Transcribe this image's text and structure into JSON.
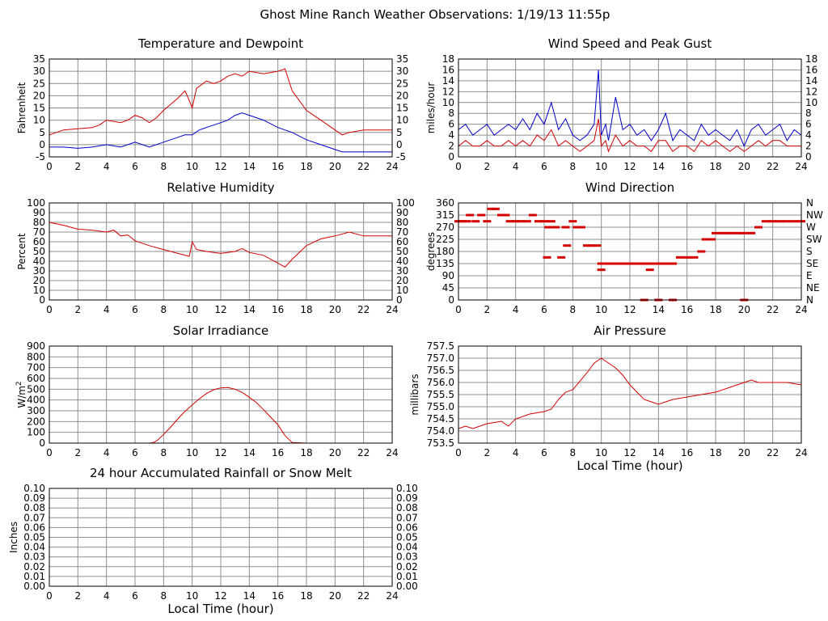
{
  "title": "Ghost Mine Ranch Weather Observations: 1/19/13 11:55p",
  "x_axis_label": "Local Time (hour)",
  "colors": {
    "red": "#d40000",
    "blue": "#0000cc",
    "grid": "#8f8f8f"
  },
  "chart_data": [
    {
      "id": "temperature",
      "type": "line",
      "title": "Temperature and Dewpoint",
      "ylabel": "Fahrenheit",
      "xlim": [
        0,
        24
      ],
      "ylim": [
        -5,
        35
      ],
      "x_ticks": [
        0,
        2,
        4,
        6,
        8,
        10,
        12,
        14,
        16,
        18,
        20,
        22,
        24
      ],
      "y_ticks": [
        -5,
        0,
        5,
        10,
        15,
        20,
        25,
        30,
        35
      ],
      "right_axis": true,
      "grid": true,
      "series": [
        {
          "color": "red",
          "x": [
            0,
            1,
            2,
            3,
            3.5,
            4,
            5,
            5.5,
            6,
            6.5,
            7,
            7.5,
            8,
            9,
            9.5,
            9.8,
            10,
            10.3,
            11,
            11.5,
            12,
            12.5,
            13,
            13.5,
            14,
            15,
            16,
            16.5,
            17,
            17.5,
            18,
            19,
            20,
            20.5,
            21,
            22,
            23,
            24
          ],
          "values": [
            4,
            6,
            6.5,
            7,
            8,
            10,
            9,
            10,
            12,
            11,
            9,
            11,
            14,
            19,
            22,
            18,
            15,
            23,
            26,
            25,
            26,
            28,
            29,
            28,
            30,
            29,
            30,
            31,
            22,
            18,
            14,
            10,
            6,
            4,
            5,
            6,
            6,
            6
          ]
        },
        {
          "color": "blue",
          "x": [
            0,
            1,
            2,
            3,
            4,
            5,
            6,
            7,
            8,
            9,
            9.5,
            10,
            10.5,
            11,
            11.5,
            12,
            12.5,
            13,
            13.5,
            14,
            15,
            16,
            17,
            18,
            19,
            20,
            20.5,
            21,
            22,
            23,
            24
          ],
          "values": [
            -1,
            -1,
            -1.5,
            -1,
            0,
            -1,
            1,
            -1,
            1,
            3,
            4,
            4,
            6,
            7,
            8,
            9,
            10,
            12,
            13,
            12,
            10,
            7,
            5,
            2,
            0,
            -2,
            -3,
            -3,
            -3,
            -3,
            -3
          ]
        }
      ]
    },
    {
      "id": "wind_speed",
      "type": "line",
      "title": "Wind Speed and Peak Gust",
      "ylabel": "miles/hour",
      "xlim": [
        0,
        24
      ],
      "ylim": [
        0,
        18
      ],
      "x_ticks": [
        0,
        2,
        4,
        6,
        8,
        10,
        12,
        14,
        16,
        18,
        20,
        22,
        24
      ],
      "y_ticks": [
        0,
        2,
        4,
        6,
        8,
        10,
        12,
        14,
        16,
        18
      ],
      "right_axis": true,
      "grid": true,
      "series": [
        {
          "color": "blue",
          "x": [
            0,
            0.5,
            1,
            1.5,
            2,
            2.5,
            3,
            3.5,
            4,
            4.5,
            5,
            5.5,
            6,
            6.5,
            7,
            7.5,
            8,
            8.5,
            9,
            9.5,
            9.8,
            10,
            10.3,
            10.5,
            11,
            11.5,
            12,
            12.5,
            13,
            13.5,
            14,
            14.5,
            15,
            15.5,
            16,
            16.5,
            17,
            17.5,
            18,
            18.5,
            19,
            19.5,
            20,
            20.5,
            21,
            21.5,
            22,
            22.5,
            23,
            23.5,
            24
          ],
          "values": [
            5,
            6,
            4,
            5,
            6,
            4,
            5,
            6,
            5,
            7,
            5,
            8,
            6,
            10,
            5,
            7,
            4,
            3,
            4,
            6,
            16,
            4,
            6,
            3,
            11,
            5,
            6,
            4,
            5,
            3,
            5,
            8,
            3,
            5,
            4,
            3,
            6,
            4,
            5,
            4,
            3,
            5,
            2,
            5,
            6,
            4,
            5,
            6,
            3,
            5,
            4
          ]
        },
        {
          "color": "red",
          "x": [
            0,
            0.5,
            1,
            1.5,
            2,
            2.5,
            3,
            3.5,
            4,
            4.5,
            5,
            5.5,
            6,
            6.5,
            7,
            7.5,
            8,
            8.5,
            9,
            9.5,
            9.8,
            10,
            10.3,
            10.5,
            11,
            11.5,
            12,
            12.5,
            13,
            13.5,
            14,
            14.5,
            15,
            15.5,
            16,
            16.5,
            17,
            17.5,
            18,
            18.5,
            19,
            19.5,
            20,
            20.5,
            21,
            21.5,
            22,
            22.5,
            23,
            23.5,
            24
          ],
          "values": [
            2,
            3,
            2,
            2,
            3,
            2,
            2,
            3,
            2,
            3,
            2,
            4,
            3,
            5,
            2,
            3,
            2,
            1,
            2,
            3,
            7,
            2,
            3,
            1,
            4,
            2,
            3,
            2,
            2,
            1,
            3,
            3,
            1,
            2,
            2,
            1,
            3,
            2,
            3,
            2,
            1,
            2,
            1,
            2,
            3,
            2,
            3,
            3,
            2,
            2,
            2
          ]
        }
      ]
    },
    {
      "id": "humidity",
      "type": "line",
      "title": "Relative Humidity",
      "ylabel": "Percent",
      "xlim": [
        0,
        24
      ],
      "ylim": [
        0,
        100
      ],
      "x_ticks": [
        0,
        2,
        4,
        6,
        8,
        10,
        12,
        14,
        16,
        18,
        20,
        22,
        24
      ],
      "y_ticks": [
        0,
        10,
        20,
        30,
        40,
        50,
        60,
        70,
        80,
        90,
        100
      ],
      "right_axis": true,
      "grid": true,
      "series": [
        {
          "color": "red",
          "x": [
            0,
            1,
            2,
            3,
            4,
            4.5,
            5,
            5.5,
            6,
            7,
            8,
            9,
            9.8,
            10,
            10.3,
            11,
            12,
            13,
            13.5,
            14,
            15,
            16,
            16.5,
            17,
            18,
            19,
            20,
            21,
            22,
            23,
            24
          ],
          "values": [
            80,
            77,
            73,
            72,
            70,
            72,
            66,
            67,
            61,
            56,
            52,
            48,
            45,
            60,
            52,
            50,
            48,
            50,
            53,
            49,
            46,
            38,
            34,
            42,
            56,
            63,
            66,
            70,
            66,
            66,
            66
          ]
        }
      ]
    },
    {
      "id": "wind_direction",
      "type": "scatter",
      "title": "Wind Direction",
      "ylabel": "degrees",
      "xlim": [
        0,
        24
      ],
      "ylim": [
        0,
        360
      ],
      "x_ticks": [
        0,
        2,
        4,
        6,
        8,
        10,
        12,
        14,
        16,
        18,
        20,
        22,
        24
      ],
      "y_ticks": [
        0,
        45,
        90,
        135,
        180,
        225,
        270,
        315,
        360
      ],
      "right_labels": [
        "N",
        "NE",
        "E",
        "SE",
        "S",
        "SW",
        "W",
        "NW",
        "N"
      ],
      "grid": true,
      "series": [
        {
          "color": "red",
          "x": [
            0,
            0.3,
            0.6,
            0.8,
            1.2,
            1.6,
            2,
            2.3,
            2.6,
            3,
            3.3,
            3.6,
            4,
            4.4,
            4.8,
            5.2,
            5.6,
            6,
            6.2,
            6.5,
            6.8,
            7.2,
            7.6,
            8,
            8.3,
            8.6,
            9,
            9.3,
            9.7,
            10,
            10.5,
            11,
            11.5,
            12,
            12.5,
            13,
            13.5,
            14,
            14.5,
            15,
            15.5,
            16,
            16.5,
            17,
            17.3,
            17.7,
            18,
            18.5,
            19,
            19.5,
            20,
            20.5,
            21,
            21.5,
            22,
            22.5,
            23,
            23.5,
            24,
            6.3,
            7.5,
            10,
            13,
            13.4,
            14,
            15,
            20
          ],
          "values": [
            292,
            292,
            292,
            315,
            292,
            315,
            292,
            338,
            338,
            315,
            315,
            292,
            292,
            292,
            292,
            315,
            292,
            292,
            158,
            292,
            270,
            158,
            202,
            292,
            270,
            270,
            202,
            202,
            202,
            135,
            135,
            135,
            135,
            135,
            135,
            135,
            135,
            135,
            135,
            135,
            158,
            158,
            158,
            180,
            225,
            225,
            248,
            248,
            248,
            248,
            248,
            248,
            270,
            292,
            292,
            292,
            292,
            292,
            292,
            270,
            270,
            112,
            0,
            112,
            0,
            0,
            0
          ]
        }
      ]
    },
    {
      "id": "solar",
      "type": "line",
      "title": "Solar Irradiance",
      "ylabel": "W/m",
      "ylabel_sup": "2",
      "xlim": [
        0,
        24
      ],
      "ylim": [
        0,
        900
      ],
      "x_ticks": [
        0,
        2,
        4,
        6,
        8,
        10,
        12,
        14,
        16,
        18,
        20,
        22,
        24
      ],
      "y_ticks": [
        0,
        100,
        200,
        300,
        400,
        500,
        600,
        700,
        800,
        900
      ],
      "right_axis": false,
      "grid": true,
      "series": [
        {
          "color": "red",
          "x": [
            0,
            7,
            7.3,
            7.6,
            8,
            8.5,
            9,
            9.5,
            10,
            10.5,
            11,
            11.5,
            12,
            12.5,
            13,
            13.5,
            14,
            14.5,
            15,
            15.5,
            16,
            16.5,
            17,
            18,
            24
          ],
          "values": [
            0,
            0,
            5,
            30,
            80,
            150,
            225,
            295,
            355,
            410,
            460,
            495,
            512,
            515,
            500,
            470,
            425,
            375,
            310,
            240,
            170,
            70,
            5,
            0,
            0
          ]
        }
      ]
    },
    {
      "id": "pressure",
      "type": "line",
      "title": "Air Pressure",
      "ylabel": "millibars",
      "xlabel": "Local Time (hour)",
      "xlim": [
        0,
        24
      ],
      "ylim": [
        753.5,
        757.5
      ],
      "x_ticks": [
        0,
        2,
        4,
        6,
        8,
        10,
        12,
        14,
        16,
        18,
        20,
        22,
        24
      ],
      "y_ticks": [
        "753.5",
        "754.0",
        "754.5",
        "755.0",
        "755.5",
        "756.0",
        "756.5",
        "757.0",
        "757.5"
      ],
      "right_axis": false,
      "grid": true,
      "series": [
        {
          "color": "red",
          "x": [
            0,
            0.5,
            1,
            2,
            3,
            3.5,
            4,
            5,
            6,
            6.5,
            7,
            7.5,
            8,
            9,
            9.5,
            10,
            10.5,
            11,
            11.5,
            12,
            12.5,
            13,
            13.5,
            14,
            14.5,
            15,
            16,
            17,
            18,
            19,
            20,
            20.5,
            21,
            22,
            23,
            24
          ],
          "values": [
            754.1,
            754.2,
            754.1,
            754.3,
            754.4,
            754.2,
            754.5,
            754.7,
            754.8,
            754.9,
            755.3,
            755.6,
            755.7,
            756.4,
            756.8,
            757.0,
            756.8,
            756.6,
            756.3,
            755.9,
            755.6,
            755.3,
            755.2,
            755.1,
            755.2,
            755.3,
            755.4,
            755.5,
            755.6,
            755.8,
            756.0,
            756.1,
            756.0,
            756.0,
            756.0,
            755.9
          ]
        }
      ]
    },
    {
      "id": "rainfall",
      "type": "line",
      "title": "24 hour Accumulated Rainfall or Snow Melt",
      "ylabel": "Inches",
      "xlabel": "Local Time (hour)",
      "xlim": [
        0,
        24
      ],
      "ylim": [
        0,
        0.1
      ],
      "x_ticks": [
        0,
        2,
        4,
        6,
        8,
        10,
        12,
        14,
        16,
        18,
        20,
        22,
        24
      ],
      "y_ticks": [
        "0.00",
        "0.01",
        "0.02",
        "0.03",
        "0.04",
        "0.05",
        "0.06",
        "0.07",
        "0.08",
        "0.09",
        "0.10"
      ],
      "right_axis": true,
      "grid": true,
      "series": [
        {
          "color": "red",
          "x": [
            0,
            24
          ],
          "values": [
            0,
            0
          ]
        }
      ]
    }
  ]
}
